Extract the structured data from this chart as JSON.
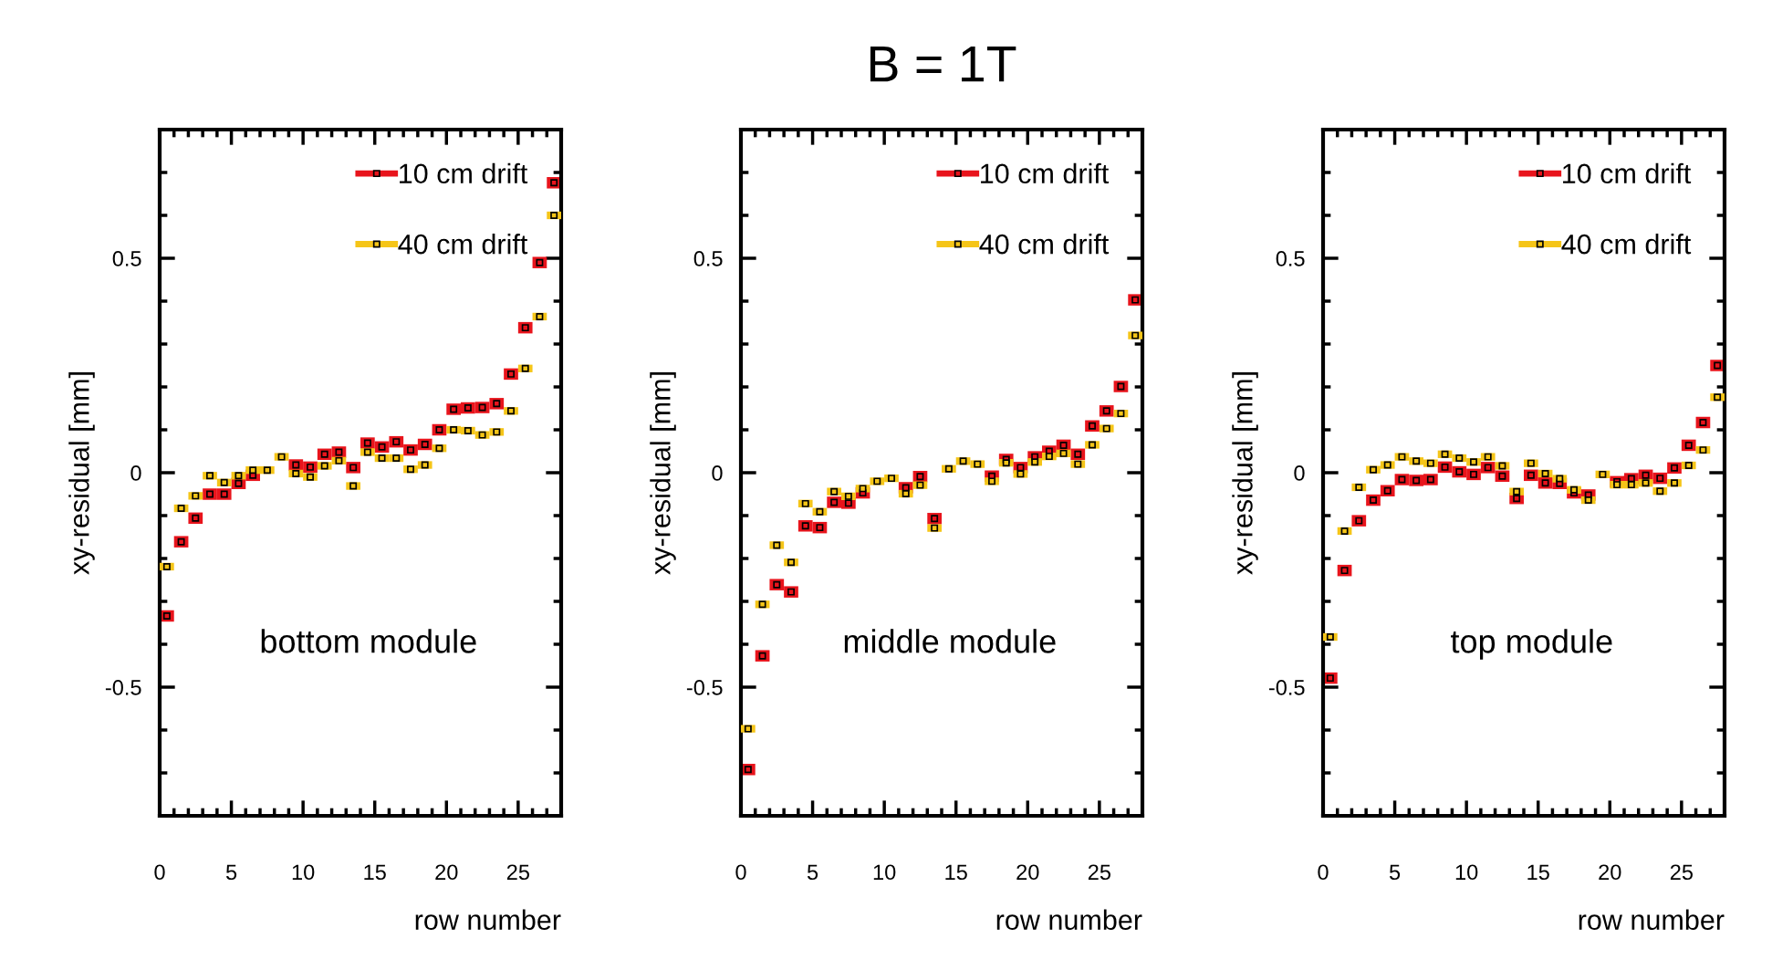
{
  "chart_data": [
    {
      "type": "scatter",
      "xlabel": "row number",
      "ylabel": "xy-residual [mm]",
      "xlim": [
        0,
        28
      ],
      "ylim": [
        -0.8,
        0.8
      ],
      "xticks": [
        0,
        5,
        10,
        15,
        20,
        25
      ],
      "yticks": [
        -0.5,
        0,
        0.5
      ],
      "legend": "top right",
      "marker": "square",
      "tick_labels": true,
      "annotations": [
        "bottom module"
      ],
      "x": [
        0.5,
        1.5,
        2.5,
        3.5,
        4.5,
        5.5,
        6.5,
        7.5,
        8.5,
        9.5,
        10.5,
        11.5,
        12.5,
        13.5,
        14.5,
        15.5,
        16.5,
        17.5,
        18.5,
        19.5,
        20.5,
        21.5,
        22.5,
        23.5,
        24.5,
        25.5,
        26.5,
        27.5
      ],
      "series": [
        {
          "name": "10 cm drift",
          "color": "#e8141c",
          "values": [
            -0.334,
            -0.161,
            -0.106,
            -0.05,
            -0.05,
            -0.025,
            -0.006,
            null,
            null,
            0.018,
            0.013,
            0.043,
            0.048,
            0.012,
            0.069,
            0.06,
            0.072,
            0.053,
            0.066,
            0.1,
            0.148,
            0.151,
            0.152,
            0.161,
            0.23,
            0.338,
            0.49,
            0.676
          ],
          "xerrors": [
            0.5,
            0.5,
            0.5,
            0.5,
            0.5,
            0.5,
            0.5,
            null,
            null,
            0.5,
            0.5,
            0.5,
            0.5,
            0.5,
            0.5,
            0.5,
            0.5,
            0.5,
            0.5,
            0.5,
            0.5,
            0.5,
            0.5,
            0.5,
            0.5,
            0.5,
            0.5,
            0.5
          ]
        },
        {
          "name": "40 cm drift",
          "color": "#f5c518",
          "values": [
            -0.219,
            -0.083,
            -0.054,
            -0.007,
            -0.023,
            -0.007,
            0.006,
            0.006,
            0.037,
            -0.002,
            -0.01,
            0.016,
            0.028,
            -0.031,
            0.048,
            0.034,
            0.034,
            0.008,
            0.018,
            0.057,
            0.1,
            0.098,
            0.088,
            0.095,
            0.144,
            0.243,
            0.364,
            0.6
          ],
          "xerrors": [
            0.5,
            0.5,
            0.5,
            0.5,
            0.5,
            0.5,
            0.5,
            0.5,
            0.5,
            0.5,
            0.5,
            0.5,
            0.5,
            0.5,
            0.5,
            0.5,
            0.5,
            0.5,
            0.5,
            0.5,
            0.5,
            0.5,
            0.5,
            0.5,
            0.5,
            0.5,
            0.5,
            0.5
          ]
        }
      ]
    },
    {
      "type": "scatter",
      "title": "B = 1T",
      "xlabel": "row number",
      "ylabel": "xy-residual [mm]",
      "xlim": [
        0,
        28
      ],
      "ylim": [
        -0.8,
        0.8
      ],
      "xticks": [
        0,
        5,
        10,
        15,
        20,
        25
      ],
      "yticks": [
        -0.5,
        0,
        0.5
      ],
      "legend": "top right",
      "marker": "square",
      "annotations": [
        "middle module"
      ],
      "x": [
        0.5,
        1.5,
        2.5,
        3.5,
        4.5,
        5.5,
        6.5,
        7.5,
        8.5,
        9.5,
        10.5,
        11.5,
        12.5,
        13.5,
        14.5,
        15.5,
        16.5,
        17.5,
        18.5,
        19.5,
        20.5,
        21.5,
        22.5,
        23.5,
        24.5,
        25.5,
        26.5,
        27.5
      ],
      "series": [
        {
          "name": "10 cm drift",
          "color": "#e8141c",
          "values": [
            -0.692,
            -0.427,
            -0.261,
            -0.278,
            -0.124,
            -0.128,
            -0.069,
            -0.071,
            -0.047,
            null,
            null,
            -0.035,
            -0.009,
            -0.107,
            null,
            null,
            null,
            -0.008,
            0.031,
            0.012,
            0.037,
            0.05,
            0.064,
            0.043,
            0.109,
            0.144,
            0.201,
            0.403
          ],
          "xerrors": [
            0.5,
            0.5,
            0.5,
            0.5,
            0.5,
            0.5,
            0.5,
            0.5,
            0.5,
            null,
            null,
            0.5,
            0.5,
            0.5,
            null,
            null,
            null,
            0.5,
            0.5,
            0.5,
            0.5,
            0.5,
            0.5,
            0.5,
            0.5,
            0.5,
            0.5,
            0.5
          ]
        },
        {
          "name": "40 cm drift",
          "color": "#f5c518",
          "values": [
            -0.597,
            -0.307,
            -0.169,
            -0.209,
            -0.072,
            -0.091,
            -0.044,
            -0.055,
            -0.037,
            -0.02,
            -0.013,
            -0.049,
            -0.029,
            -0.129,
            0.009,
            0.027,
            0.02,
            -0.02,
            0.023,
            -0.003,
            0.025,
            0.038,
            0.045,
            0.02,
            0.065,
            0.103,
            0.138,
            0.32
          ],
          "xerrors": [
            0.5,
            0.5,
            0.5,
            0.5,
            0.5,
            0.5,
            0.5,
            0.5,
            0.5,
            0.5,
            0.5,
            0.5,
            0.5,
            0.5,
            0.5,
            0.5,
            0.5,
            0.5,
            0.5,
            0.5,
            0.5,
            0.5,
            0.5,
            0.5,
            0.5,
            0.5,
            0.5,
            0.5
          ]
        }
      ]
    },
    {
      "type": "scatter",
      "xlabel": "row number",
      "ylabel": "xy-residual [mm]",
      "xlim": [
        0,
        28
      ],
      "ylim": [
        -0.8,
        0.8
      ],
      "xticks": [
        0,
        5,
        10,
        15,
        20,
        25
      ],
      "yticks": [
        -0.5,
        0,
        0.5
      ],
      "legend": "top right",
      "marker": "square",
      "annotations": [
        "top module"
      ],
      "x": [
        0.5,
        1.5,
        2.5,
        3.5,
        4.5,
        5.5,
        6.5,
        7.5,
        8.5,
        9.5,
        10.5,
        11.5,
        12.5,
        13.5,
        14.5,
        15.5,
        16.5,
        17.5,
        18.5,
        19.5,
        20.5,
        21.5,
        22.5,
        23.5,
        24.5,
        25.5,
        26.5,
        27.5
      ],
      "series": [
        {
          "name": "10 cm drift",
          "color": "#e8141c",
          "values": [
            -0.479,
            -0.228,
            -0.112,
            -0.064,
            -0.042,
            -0.016,
            -0.018,
            -0.016,
            0.013,
            0.002,
            -0.004,
            0.012,
            -0.008,
            -0.06,
            -0.006,
            -0.024,
            -0.025,
            -0.047,
            -0.052,
            null,
            -0.021,
            -0.014,
            -0.006,
            -0.013,
            0.011,
            0.064,
            0.117,
            0.25
          ],
          "xerrors": [
            0.5,
            0.5,
            0.5,
            0.5,
            0.5,
            0.5,
            0.5,
            0.5,
            0.5,
            0.5,
            0.5,
            0.5,
            0.5,
            0.5,
            0.5,
            0.5,
            0.5,
            0.5,
            0.5,
            null,
            0.5,
            0.5,
            0.5,
            0.5,
            0.5,
            0.5,
            0.5,
            0.5
          ]
        },
        {
          "name": "40 cm drift",
          "color": "#f5c518",
          "values": [
            -0.383,
            -0.136,
            -0.034,
            0.007,
            0.018,
            0.037,
            0.027,
            0.022,
            0.043,
            0.034,
            0.025,
            0.037,
            0.016,
            -0.044,
            0.022,
            -0.002,
            -0.014,
            -0.04,
            -0.064,
            -0.004,
            -0.028,
            -0.028,
            -0.024,
            -0.043,
            -0.024,
            0.017,
            0.053,
            0.176
          ],
          "xerrors": [
            0.5,
            0.5,
            0.5,
            0.5,
            0.5,
            0.5,
            0.5,
            0.5,
            0.5,
            0.5,
            0.5,
            0.5,
            0.5,
            0.5,
            0.5,
            0.5,
            0.5,
            0.5,
            0.5,
            0.5,
            0.5,
            0.5,
            0.5,
            0.5,
            0.5,
            0.5,
            0.5,
            0.5
          ]
        }
      ]
    }
  ]
}
